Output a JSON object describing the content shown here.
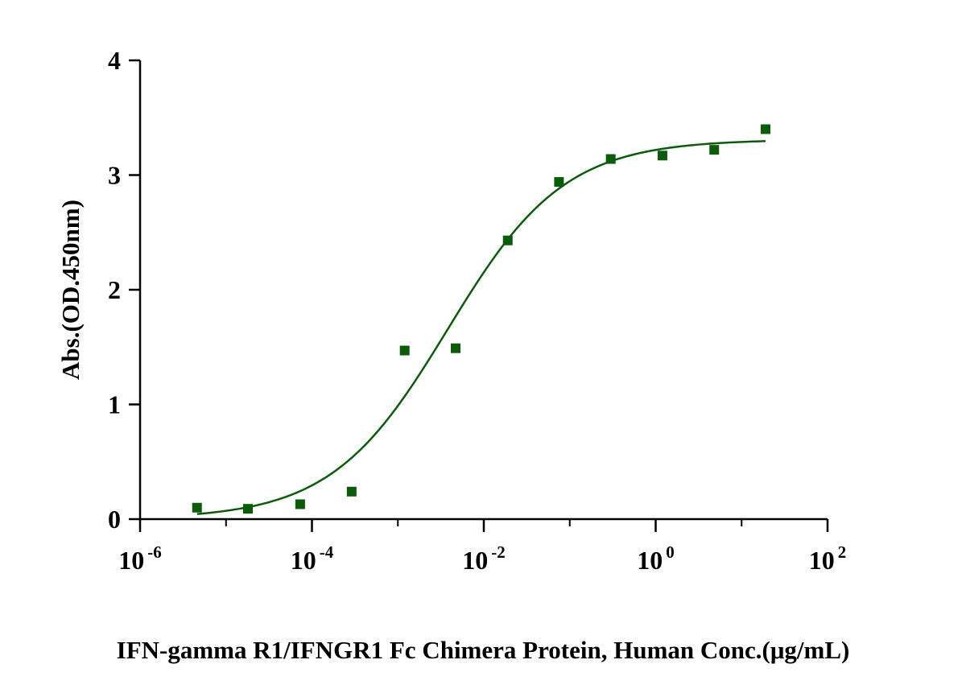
{
  "chart_data": {
    "type": "scatter",
    "xscale": "log",
    "xlim": [
      1e-06,
      100
    ],
    "ylim": [
      0,
      4
    ],
    "xlabel": "IFN-gamma R1/IFNGR1 Fc Chimera Protein, Human  Conc.(μg/mL)",
    "ylabel": "Abs.(OD.450nm)",
    "y_ticks": [
      0,
      1,
      2,
      3,
      4
    ],
    "y_tick_labels": [
      "0",
      "1",
      "2",
      "3",
      "4"
    ],
    "x_ticks": [
      {
        "value": 1e-06,
        "base": "10",
        "exp": "-6"
      },
      {
        "value": 0.0001,
        "base": "10",
        "exp": "-4"
      },
      {
        "value": 0.01,
        "base": "10",
        "exp": "-2"
      },
      {
        "value": 1,
        "base": "10",
        "exp": "0"
      },
      {
        "value": 100,
        "base": "10",
        "exp": "2"
      }
    ],
    "color": "#0a5c0a",
    "series": [
      {
        "points": [
          {
            "x": 4.6e-06,
            "y": 0.1
          },
          {
            "x": 1.8e-05,
            "y": 0.09
          },
          {
            "x": 7.3e-05,
            "y": 0.13
          },
          {
            "x": 0.00029,
            "y": 0.24
          },
          {
            "x": 0.0012,
            "y": 1.47
          },
          {
            "x": 0.0047,
            "y": 1.49
          },
          {
            "x": 0.019,
            "y": 2.43
          },
          {
            "x": 0.075,
            "y": 2.94
          },
          {
            "x": 0.3,
            "y": 3.14
          },
          {
            "x": 1.2,
            "y": 3.17
          },
          {
            "x": 4.8,
            "y": 3.22
          },
          {
            "x": 19,
            "y": 3.4
          }
        ],
        "fit": {
          "model": "4PL",
          "bottom": 0.0,
          "top": 3.31,
          "ec50": 0.0038,
          "hill": 0.64,
          "xrange": [
            4.6e-06,
            19
          ]
        }
      }
    ]
  }
}
